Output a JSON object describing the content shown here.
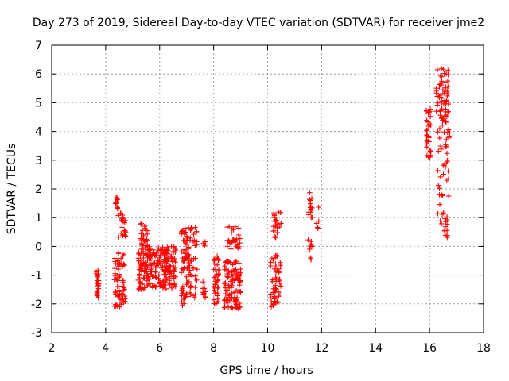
{
  "chart_data": {
    "type": "scatter",
    "title": "Day 273 of 2019, Sidereal Day-to-day VTEC variation (SDTVAR) for receiver jme2",
    "xlabel": "GPS time / hours",
    "ylabel": "SDTVAR / TECUs",
    "xlim": [
      2,
      18
    ],
    "ylim": [
      -3,
      7
    ],
    "xticks": [
      "2",
      "4",
      "6",
      "8",
      "10",
      "12",
      "14",
      "16",
      "18"
    ],
    "yticks": [
      "-3",
      "-2",
      "-1",
      "0",
      "1",
      "2",
      "3",
      "4",
      "5",
      "6",
      "7"
    ],
    "grid": true,
    "marker": "+",
    "marker_color": "#ff0000",
    "series_segments": [
      {
        "x0": 3.65,
        "x1": 3.75,
        "ymin": -1.8,
        "ymax": -0.8,
        "n": 25
      },
      {
        "x0": 4.35,
        "x1": 4.45,
        "ymin": 1.3,
        "ymax": 1.75,
        "n": 12
      },
      {
        "x0": 4.45,
        "x1": 4.75,
        "ymin": 0.3,
        "ymax": 1.2,
        "n": 22
      },
      {
        "x0": 4.3,
        "x1": 4.75,
        "ymin": -2.1,
        "ymax": -0.2,
        "n": 70
      },
      {
        "x0": 5.3,
        "x1": 5.55,
        "ymin": 0.0,
        "ymax": 0.8,
        "n": 25
      },
      {
        "x0": 5.2,
        "x1": 6.6,
        "ymin": -1.5,
        "ymax": 0.0,
        "n": 240
      },
      {
        "x0": 6.8,
        "x1": 7.4,
        "ymin": -1.8,
        "ymax": 0.7,
        "n": 110
      },
      {
        "x0": 6.8,
        "x1": 6.9,
        "ymin": -2.1,
        "ymax": -1.8,
        "n": 5
      },
      {
        "x0": 7.6,
        "x1": 7.7,
        "ymin": 0.0,
        "ymax": 0.2,
        "n": 5
      },
      {
        "x0": 7.6,
        "x1": 7.7,
        "ymin": -1.9,
        "ymax": -1.2,
        "n": 10
      },
      {
        "x0": 8.0,
        "x1": 8.2,
        "ymin": -2.0,
        "ymax": -0.3,
        "n": 40
      },
      {
        "x0": 8.5,
        "x1": 9.0,
        "ymin": -0.1,
        "ymax": 0.7,
        "n": 30
      },
      {
        "x0": 8.4,
        "x1": 9.0,
        "ymin": -2.2,
        "ymax": -0.5,
        "n": 110
      },
      {
        "x0": 10.2,
        "x1": 10.5,
        "ymin": 0.3,
        "ymax": 1.2,
        "n": 25
      },
      {
        "x0": 10.1,
        "x1": 10.5,
        "ymin": -2.1,
        "ymax": -0.3,
        "n": 60
      },
      {
        "x0": 11.5,
        "x1": 11.65,
        "ymin": 1.0,
        "ymax": 1.9,
        "n": 15
      },
      {
        "x0": 11.5,
        "x1": 11.65,
        "ymin": -0.5,
        "ymax": 0.3,
        "n": 12
      },
      {
        "x0": 11.8,
        "x1": 11.9,
        "ymin": 0.3,
        "ymax": 1.4,
        "n": 5
      },
      {
        "x0": 15.85,
        "x1": 16.05,
        "ymin": 3.1,
        "ymax": 4.8,
        "n": 35
      },
      {
        "x0": 16.25,
        "x1": 16.7,
        "ymin": 4.2,
        "ymax": 6.2,
        "n": 65
      },
      {
        "x0": 16.3,
        "x1": 16.75,
        "ymin": 0.2,
        "ymax": 4.1,
        "n": 55
      }
    ]
  }
}
